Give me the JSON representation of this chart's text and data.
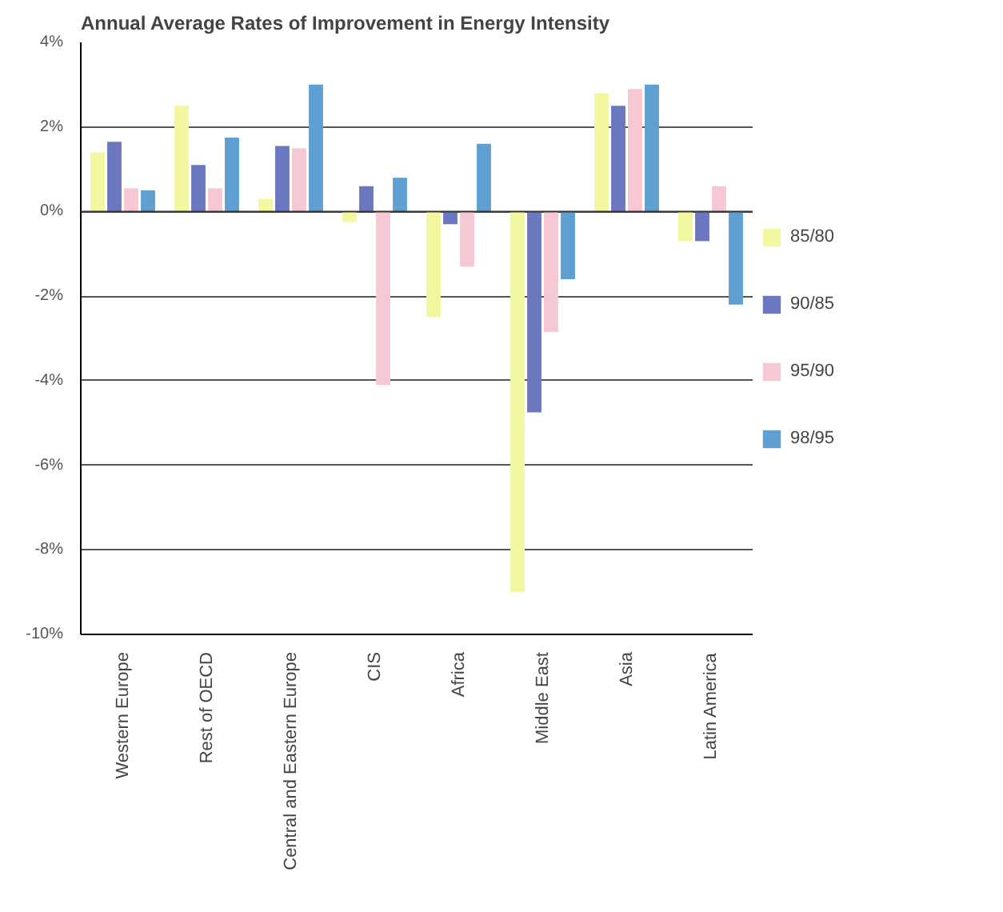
{
  "chart_data": {
    "type": "bar",
    "title": "Annual Average Rates of Improvement in Energy Intensity",
    "categories": [
      "Western Europe",
      "Rest of OECD",
      "Central and Eastern Europe",
      "CIS",
      "Africa",
      "Middle East",
      "Asia",
      "Latin America"
    ],
    "series": [
      {
        "name": "85/80",
        "color": "#f3f7a0",
        "values": [
          1.4,
          2.5,
          0.3,
          -0.25,
          -2.5,
          -9.0,
          2.8,
          -0.7
        ]
      },
      {
        "name": "90/85",
        "color": "#6b78c0",
        "values": [
          1.65,
          1.1,
          1.55,
          0.6,
          -0.3,
          -4.75,
          2.5,
          -0.7
        ]
      },
      {
        "name": "95/90",
        "color": "#f5c8d4",
        "values": [
          0.55,
          0.55,
          1.5,
          -4.1,
          -1.3,
          -2.85,
          2.9,
          0.6
        ]
      },
      {
        "name": "98/95",
        "color": "#5f9fd2",
        "values": [
          0.5,
          1.75,
          3.0,
          0.8,
          1.6,
          -1.6,
          3.0,
          -2.2
        ]
      }
    ],
    "ylim": [
      -10,
      4
    ],
    "yticks": [
      {
        "value": -10,
        "label": "-10%"
      },
      {
        "value": -8,
        "label": "-8%"
      },
      {
        "value": -6,
        "label": "-6%"
      },
      {
        "value": -4,
        "label": "-4%"
      },
      {
        "value": -2,
        "label": "-2%"
      },
      {
        "value": 0,
        "label": "0%"
      },
      {
        "value": 2,
        "label": "2%"
      },
      {
        "value": 4,
        "label": "4%"
      }
    ],
    "grid": "y",
    "legend": "right"
  }
}
